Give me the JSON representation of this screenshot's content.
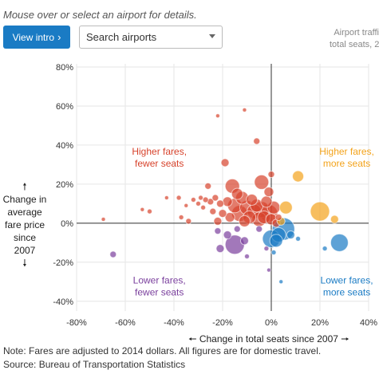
{
  "header": {
    "instruction": "Mouse over or select an airport for details.",
    "intro_label": "View intro",
    "intro_icon": "chevron-right-icon",
    "search_value": "Search airports",
    "side_note_line1": "Airport traffi",
    "side_note_line2": "total seats, 2"
  },
  "axes": {
    "y_caption_arrow_up": "🠕",
    "y_caption_lines": [
      "Change in",
      "average",
      "fare price",
      "since",
      "2007"
    ],
    "y_caption_arrow_down": "🠗",
    "x_caption": "🠔 Change in total seats since 2007 🠖"
  },
  "notes": {
    "line1": "Note: Fares are adjusted to 2014 dollars. All figures are for domestic travel.",
    "line2": "Source: Bureau of Transportation Statistics"
  },
  "chart_data": {
    "type": "scatter",
    "xlabel": "Change in total seats since 2007",
    "ylabel": "Change in average fare price since 2007",
    "xlim": [
      -80,
      40
    ],
    "ylim": [
      -45,
      80
    ],
    "x_ticks": [
      "-80%",
      "-60%",
      "-40%",
      "-20%",
      "0%",
      "20%",
      "40%"
    ],
    "x_tick_values": [
      -80,
      -60,
      -40,
      -20,
      0,
      20,
      40
    ],
    "y_ticks": [
      "80%",
      "60%",
      "40%",
      "20%",
      "0%",
      "-20%",
      "-40%"
    ],
    "y_tick_values": [
      80,
      60,
      40,
      20,
      0,
      -20,
      -40
    ],
    "grid": true,
    "quadrants": [
      {
        "name": "Higher fares, fewer seats",
        "lines": [
          "Higher fares,",
          "fewer seats"
        ],
        "color": "#d7432c"
      },
      {
        "name": "Higher fares, more seats",
        "lines": [
          "Higher fares,",
          "more seats"
        ],
        "color": "#f3a31b"
      },
      {
        "name": "Lower fares, fewer seats",
        "lines": [
          "Lower fares,",
          "fewer seats"
        ],
        "color": "#7a3f9d"
      },
      {
        "name": "Lower fares, more seats",
        "lines": [
          "Lower fares,",
          "more seats"
        ],
        "color": "#1a7bc4"
      }
    ],
    "points": [
      {
        "x": -69,
        "y": 2,
        "size": 2.5,
        "q": 0
      },
      {
        "x": -53,
        "y": 7,
        "size": 2.5,
        "q": 0
      },
      {
        "x": -50,
        "y": 6,
        "size": 3,
        "q": 0
      },
      {
        "x": -43,
        "y": 13,
        "size": 2.5,
        "q": 0
      },
      {
        "x": -38,
        "y": 13,
        "size": 3,
        "q": 0
      },
      {
        "x": -37,
        "y": 3,
        "size": 3,
        "q": 0
      },
      {
        "x": -35,
        "y": 9,
        "size": 2.5,
        "q": 0
      },
      {
        "x": -34,
        "y": 1,
        "size": 3.5,
        "q": 0
      },
      {
        "x": -32,
        "y": 12,
        "size": 3,
        "q": 0
      },
      {
        "x": -30,
        "y": 10,
        "size": 3,
        "q": 0
      },
      {
        "x": -29,
        "y": 13,
        "size": 3,
        "q": 0
      },
      {
        "x": -28,
        "y": 8,
        "size": 3,
        "q": 0
      },
      {
        "x": -27,
        "y": 12,
        "size": 3.5,
        "q": 0
      },
      {
        "x": -26,
        "y": 19,
        "size": 4,
        "q": 0
      },
      {
        "x": -25,
        "y": 11,
        "size": 4,
        "q": 0
      },
      {
        "x": -24,
        "y": 6,
        "size": 4,
        "q": 0
      },
      {
        "x": -23,
        "y": 13,
        "size": 4,
        "q": 0
      },
      {
        "x": -22,
        "y": 1,
        "size": 5,
        "q": 0
      },
      {
        "x": -21,
        "y": 10,
        "size": 4.5,
        "q": 0
      },
      {
        "x": -20,
        "y": 5,
        "size": 5,
        "q": 0
      },
      {
        "x": -19,
        "y": 31,
        "size": 5,
        "q": 0
      },
      {
        "x": -18,
        "y": 11,
        "size": 6,
        "q": 0
      },
      {
        "x": -17,
        "y": 3,
        "size": 6,
        "q": 0
      },
      {
        "x": -16,
        "y": 19,
        "size": 9,
        "q": 0
      },
      {
        "x": -15,
        "y": 9,
        "size": 9,
        "q": 0
      },
      {
        "x": -14,
        "y": 15,
        "size": 7,
        "q": 0
      },
      {
        "x": -13,
        "y": 5,
        "size": 10,
        "q": 0
      },
      {
        "x": -12,
        "y": 13,
        "size": 8,
        "q": 0
      },
      {
        "x": -11,
        "y": 1,
        "size": 7,
        "q": 0
      },
      {
        "x": -10,
        "y": 8,
        "size": 9,
        "q": 0
      },
      {
        "x": -9,
        "y": 3,
        "size": 8,
        "q": 0
      },
      {
        "x": -8,
        "y": 12,
        "size": 7,
        "q": 0
      },
      {
        "x": -7,
        "y": 6,
        "size": 9,
        "q": 0
      },
      {
        "x": -6,
        "y": 9,
        "size": 8,
        "q": 0
      },
      {
        "x": -5,
        "y": 2,
        "size": 9,
        "q": 0
      },
      {
        "x": -4,
        "y": 21,
        "size": 9,
        "q": 0
      },
      {
        "x": -4,
        "y": 7,
        "size": 10,
        "q": 0
      },
      {
        "x": -3,
        "y": 3,
        "size": 8,
        "q": 0
      },
      {
        "x": -2,
        "y": 11,
        "size": 7,
        "q": 0
      },
      {
        "x": -1,
        "y": 5,
        "size": 11,
        "q": 0
      },
      {
        "x": 1,
        "y": 8,
        "size": 8,
        "q": 0
      },
      {
        "x": 0,
        "y": 2,
        "size": 7,
        "q": 0
      },
      {
        "x": -1,
        "y": 16,
        "size": 6,
        "q": 0
      },
      {
        "x": -6,
        "y": 42,
        "size": 4,
        "q": 0
      },
      {
        "x": -11,
        "y": 58,
        "size": 2.5,
        "q": 0
      },
      {
        "x": -22,
        "y": 55,
        "size": 2.5,
        "q": 0
      },
      {
        "x": 0,
        "y": 25,
        "size": 4,
        "q": 0
      },
      {
        "x": 2,
        "y": 0,
        "size": 5,
        "q": 0
      },
      {
        "x": 3,
        "y": 3,
        "size": 4,
        "q": 0
      },
      {
        "x": 11,
        "y": 24,
        "size": 7,
        "q": 1
      },
      {
        "x": 20,
        "y": 6,
        "size": 12,
        "q": 1
      },
      {
        "x": 26,
        "y": 2,
        "size": 5,
        "q": 1
      },
      {
        "x": 4,
        "y": 1,
        "size": 5,
        "q": 1
      },
      {
        "x": 6,
        "y": 8,
        "size": 8,
        "q": 1
      },
      {
        "x": -15,
        "y": -11,
        "size": 12,
        "q": 2
      },
      {
        "x": -21,
        "y": -13,
        "size": 5,
        "q": 2
      },
      {
        "x": -18,
        "y": -6,
        "size": 5,
        "q": 2
      },
      {
        "x": -14,
        "y": -3,
        "size": 4,
        "q": 2
      },
      {
        "x": -11,
        "y": -9,
        "size": 5,
        "q": 2
      },
      {
        "x": -10,
        "y": -17,
        "size": 3,
        "q": 2
      },
      {
        "x": -22,
        "y": -4,
        "size": 4,
        "q": 2
      },
      {
        "x": -5,
        "y": -3,
        "size": 4,
        "q": 2
      },
      {
        "x": -65,
        "y": -16,
        "size": 4,
        "q": 2
      },
      {
        "x": -1,
        "y": -24,
        "size": 2.5,
        "q": 2
      },
      {
        "x": -2,
        "y": -13,
        "size": 3,
        "q": 2
      },
      {
        "x": 0,
        "y": -8,
        "size": 11,
        "q": 3
      },
      {
        "x": 5,
        "y": -3,
        "size": 14,
        "q": 3
      },
      {
        "x": 3,
        "y": -6,
        "size": 9,
        "q": 3
      },
      {
        "x": 2,
        "y": -9,
        "size": 8,
        "q": 3
      },
      {
        "x": 8,
        "y": -6,
        "size": 5,
        "q": 3
      },
      {
        "x": 11,
        "y": -8,
        "size": 3,
        "q": 3
      },
      {
        "x": 28,
        "y": -10,
        "size": 11,
        "q": 3
      },
      {
        "x": 22,
        "y": -13,
        "size": 3,
        "q": 3
      },
      {
        "x": 4,
        "y": -30,
        "size": 2.5,
        "q": 3
      },
      {
        "x": 1,
        "y": -15,
        "size": 3,
        "q": 3
      }
    ]
  }
}
